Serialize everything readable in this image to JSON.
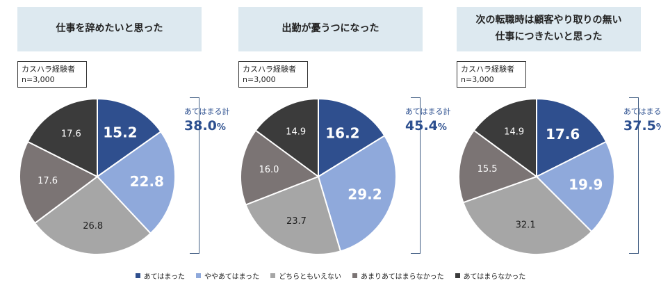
{
  "colors": {
    "category_1": "#2f4f8e",
    "category_2": "#8fa9db",
    "category_3": "#a6a6a6",
    "category_4": "#7b7474",
    "category_5": "#3b3b3b",
    "accent": "#2c4f8f"
  },
  "legend": [
    "あてはまった",
    "ややあてはまった",
    "どちらともいえない",
    "あまりあてはまらなかった",
    "あてはまらなかった"
  ],
  "chart_data": [
    {
      "type": "pie",
      "title": "仕事を辞めたいと思った",
      "note": [
        "カスハラ経験者",
        "n=3,000"
      ],
      "categories": [
        "あてはまった",
        "ややあてはまった",
        "どちらともいえない",
        "あまりあてはまらなかった",
        "あてはまらなかった"
      ],
      "values": [
        15.2,
        22.8,
        26.8,
        17.6,
        17.6
      ],
      "total_label": "あてはまる計",
      "total_value": "38.0",
      "total_unit": "%"
    },
    {
      "type": "pie",
      "title": "出勤が憂うつになった",
      "note": [
        "カスハラ経験者",
        "n=3,000"
      ],
      "categories": [
        "あてはまった",
        "ややあてはまった",
        "どちらともいえない",
        "あまりあてはまらなかった",
        "あてはまらなかった"
      ],
      "values": [
        16.2,
        29.2,
        23.7,
        16.0,
        14.9
      ],
      "total_label": "あてはまる計",
      "total_value": "45.4",
      "total_unit": "%"
    },
    {
      "type": "pie",
      "title": "次の転職時は顧客やり取りの無い\n仕事につきたいと思った",
      "note": [
        "カスハラ経験者",
        "n=3,000"
      ],
      "categories": [
        "あてはまった",
        "ややあてはまった",
        "どちらともいえない",
        "あまりあてはまらなかった",
        "あてはまらなかった"
      ],
      "values": [
        17.6,
        19.9,
        32.1,
        15.5,
        14.9
      ],
      "total_label": "あてはまる計",
      "total_value": "37.5",
      "total_unit": "%"
    }
  ]
}
